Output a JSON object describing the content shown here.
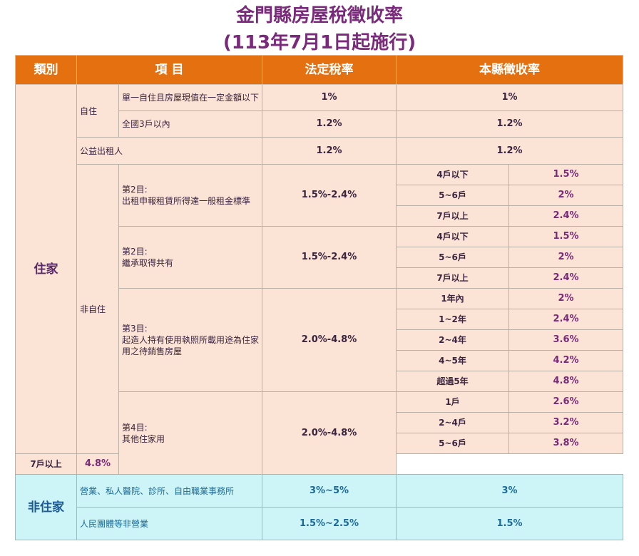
{
  "title_line1": "金門縣房屋稅徵收率",
  "title_line2": "(113年7月1日起施行)",
  "headers": {
    "category": "類別",
    "item": "項 目",
    "legal_rate": "法定稅率",
    "county_rate": "本縣徵收率"
  },
  "residential": {
    "label": "住家",
    "self_use": {
      "label": "自住",
      "rows": [
        {
          "item": "單一自住且房屋現值在一定金額以下",
          "legal": "1%",
          "county": "1%"
        },
        {
          "item": "全國3戶以內",
          "legal": "1.2%",
          "county": "1.2%"
        }
      ]
    },
    "public_rental": {
      "item": "公益出租人",
      "legal": "1.2%",
      "county": "1.2%"
    },
    "non_self_use": {
      "label": "非自住",
      "groups": [
        {
          "item_line1": "第2目:",
          "item_line2": "出租申報租賃所得達一般租金標準",
          "legal": "1.5%-2.4%",
          "tiers": [
            {
              "cond": "4戶以下",
              "rate": "1.5%"
            },
            {
              "cond": "5~6戶",
              "rate": "2%"
            },
            {
              "cond": "7戶以上",
              "rate": "2.4%"
            }
          ]
        },
        {
          "item_line1": "第2目:",
          "item_line2": "繼承取得共有",
          "legal": "1.5%-2.4%",
          "tiers": [
            {
              "cond": "4戶以下",
              "rate": "1.5%"
            },
            {
              "cond": "5~6戶",
              "rate": "2%"
            },
            {
              "cond": "7戶以上",
              "rate": "2.4%"
            }
          ]
        },
        {
          "item_line1": "第3目:",
          "item_line2": "起造人持有使用執照所載用途為住家用之待銷售房屋",
          "legal": "2.0%-4.8%",
          "tiers": [
            {
              "cond": "1年內",
              "rate": "2%"
            },
            {
              "cond": "1~2年",
              "rate": "2.4%"
            },
            {
              "cond": "2~4年",
              "rate": "3.6%"
            },
            {
              "cond": "4~5年",
              "rate": "4.2%"
            },
            {
              "cond": "超過5年",
              "rate": "4.8%"
            }
          ]
        },
        {
          "item_line1": "第4目:",
          "item_line2": "其他住家用",
          "legal": "2.0%-4.8%",
          "tiers": [
            {
              "cond": "1戶",
              "rate": "2.6%"
            },
            {
              "cond": "2~4戶",
              "rate": "3.2%"
            },
            {
              "cond": "5~6戶",
              "rate": "3.8%"
            },
            {
              "cond": "7戶以上",
              "rate": "4.8%"
            }
          ]
        }
      ]
    }
  },
  "non_residential": {
    "label": "非住家",
    "rows": [
      {
        "item": "營業、私人醫院、診所、自由職業事務所",
        "legal": "3%~5%",
        "county": "3%"
      },
      {
        "item": "人民團體等非營業",
        "legal": "1.5%~2.5%",
        "county": "1.5%"
      }
    ]
  }
}
